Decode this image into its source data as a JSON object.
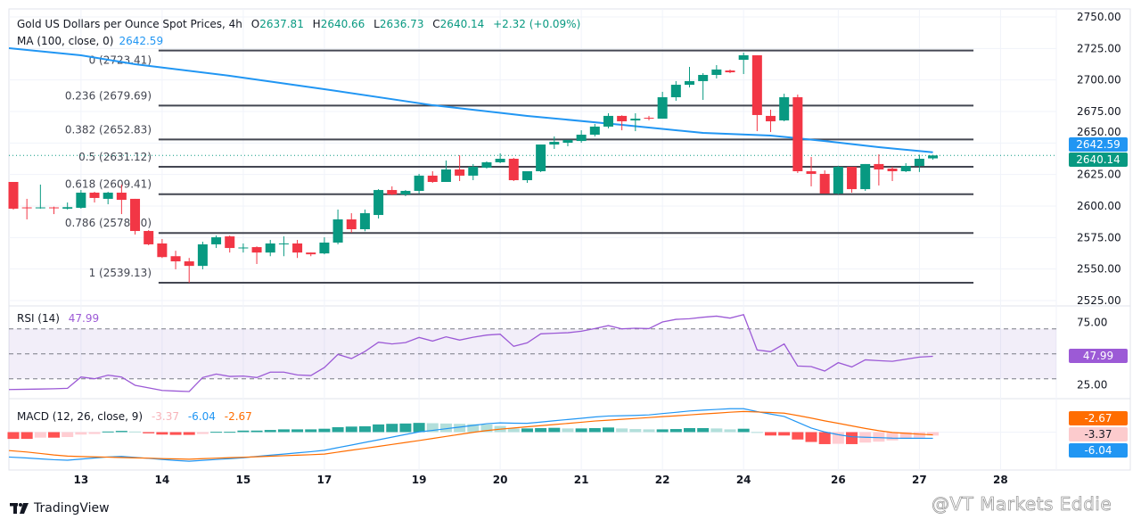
{
  "header": {
    "symbol_title": "Gold US Dollars per Ounce Spot Prices, 4h",
    "open_label": "O",
    "open": "2637.81",
    "high_label": "H",
    "high": "2640.66",
    "low_label": "L",
    "low": "2636.73",
    "close_label": "C",
    "close": "2640.14",
    "change": "+2.32 (+0.09%)",
    "ma_label": "MA (100, close, 0)",
    "ma_value": "2642.59"
  },
  "rsi_legend": {
    "label": "RSI (14)",
    "value": "47.99"
  },
  "macd_legend": {
    "label": "MACD (12, 26, close, 9)",
    "hist": "-3.37",
    "macd": "-6.04",
    "signal": "-2.67"
  },
  "badges": {
    "ma_price": "2642.59",
    "last_price": "2640.14",
    "rsi": "47.99",
    "macd_signal": "-2.67",
    "macd_hist": "-3.37",
    "macd_line": "-6.04"
  },
  "branding": {
    "logo_text": "TradingView",
    "watermark": "@VT Markets Eddie"
  },
  "colors": {
    "up": "#089981",
    "down": "#f23645",
    "ma": "#2196f3",
    "rsi": "#9c5ad6",
    "macd": "#2196f3",
    "signal": "#ff6d00",
    "fib": "#434651"
  },
  "chart_data": [
    {
      "type": "candlestick",
      "title": "Gold US Dollars per Ounce Spot Prices, 4h",
      "ylim": [
        2525,
        2750
      ],
      "yticks": [
        "2750.00",
        "2725.00",
        "2700.00",
        "2675.00",
        "2650.00",
        "2625.00",
        "2600.00",
        "2575.00",
        "2550.00",
        "2525.00"
      ],
      "ytick_values": [
        2750,
        2725,
        2700,
        2675,
        2650,
        2625,
        2600,
        2575,
        2550,
        2525
      ],
      "x_labels": [
        {
          "label": "13",
          "bar": 5
        },
        {
          "label": "14",
          "bar": 11
        },
        {
          "label": "15",
          "bar": 17
        },
        {
          "label": "17",
          "bar": 23
        },
        {
          "label": "19",
          "bar": 30
        },
        {
          "label": "20",
          "bar": 36
        },
        {
          "label": "21",
          "bar": 42
        },
        {
          "label": "22",
          "bar": 48
        },
        {
          "label": "24",
          "bar": 54
        },
        {
          "label": "26",
          "bar": 61
        },
        {
          "label": "27",
          "bar": 67
        },
        {
          "label": "28",
          "bar": 73
        }
      ],
      "ohlc": [
        [
          2619.1,
          2619.1,
          2597.2,
          2597.9
        ],
        [
          2598.9,
          2605.7,
          2589.4,
          2598.4
        ],
        [
          2598.4,
          2617.0,
          2597.9,
          2598.9
        ],
        [
          2598.9,
          2599.5,
          2593.6,
          2598.4
        ],
        [
          2597.9,
          2602.8,
          2597.2,
          2599.1
        ],
        [
          2598.6,
          2612.7,
          2597.9,
          2610.6
        ],
        [
          2610.6,
          2611.3,
          2602.8,
          2606.4
        ],
        [
          2605.7,
          2611.3,
          2601.4,
          2610.6
        ],
        [
          2610.6,
          2617.0,
          2593.6,
          2604.9
        ],
        [
          2605.7,
          2605.7,
          2577.4,
          2580.2
        ],
        [
          2580.2,
          2580.9,
          2568.9,
          2569.6
        ],
        [
          2570.3,
          2573.8,
          2558.8,
          2559.5
        ],
        [
          2560.2,
          2564.5,
          2549.8,
          2556.1
        ],
        [
          2556.1,
          2558.8,
          2539.13,
          2552.5
        ],
        [
          2552.5,
          2571.7,
          2549.8,
          2569.6
        ],
        [
          2569.6,
          2576.6,
          2566.7,
          2575.2
        ],
        [
          2575.9,
          2576.6,
          2563.1,
          2566.7
        ],
        [
          2566.7,
          2570.3,
          2563.1,
          2567.1
        ],
        [
          2567.4,
          2568.0,
          2554.0,
          2563.1
        ],
        [
          2563.1,
          2573.1,
          2560.2,
          2570.3
        ],
        [
          2570.0,
          2575.9,
          2560.2,
          2570.3
        ],
        [
          2570.3,
          2573.1,
          2558.8,
          2563.1
        ],
        [
          2563.1,
          2563.1,
          2560.2,
          2561.7
        ],
        [
          2562.4,
          2575.2,
          2561.7,
          2571.0
        ],
        [
          2571.0,
          2597.2,
          2569.6,
          2589.4
        ],
        [
          2589.4,
          2594.3,
          2578.8,
          2581.6
        ],
        [
          2581.6,
          2597.2,
          2580.0,
          2594.3
        ],
        [
          2592.9,
          2613.4,
          2590.1,
          2612.7
        ],
        [
          2612.7,
          2615.6,
          2608.5,
          2609.2
        ],
        [
          2609.2,
          2612.7,
          2607.8,
          2612.0
        ],
        [
          2612.0,
          2625.5,
          2609.9,
          2624.1
        ],
        [
          2624.1,
          2627.6,
          2618.4,
          2619.1
        ],
        [
          2619.1,
          2636.1,
          2619.1,
          2629.0
        ],
        [
          2629.0,
          2640.3,
          2619.8,
          2624.1
        ],
        [
          2624.1,
          2633.3,
          2620.5,
          2631.1
        ],
        [
          2630.4,
          2635.4,
          2629.7,
          2634.7
        ],
        [
          2634.7,
          2641.8,
          2634.0,
          2637.5
        ],
        [
          2637.5,
          2638.2,
          2619.8,
          2620.5
        ],
        [
          2620.5,
          2627.6,
          2618.4,
          2627.6
        ],
        [
          2627.6,
          2648.8,
          2626.9,
          2648.8
        ],
        [
          2648.8,
          2655.2,
          2645.3,
          2650.9
        ],
        [
          2650.2,
          2652.4,
          2647.4,
          2652.4
        ],
        [
          2651.6,
          2660.1,
          2650.2,
          2656.6
        ],
        [
          2656.6,
          2665.1,
          2655.2,
          2663.0
        ],
        [
          2663.0,
          2673.6,
          2661.6,
          2671.5
        ],
        [
          2671.5,
          2672.0,
          2660.1,
          2667.2
        ],
        [
          2667.9,
          2673.6,
          2659.4,
          2669.3
        ],
        [
          2670.0,
          2671.5,
          2668.0,
          2669.7
        ],
        [
          2669.3,
          2690.6,
          2669.3,
          2686.3
        ],
        [
          2686.3,
          2699.1,
          2683.5,
          2696.2
        ],
        [
          2696.2,
          2710.4,
          2694.1,
          2699.1
        ],
        [
          2699.1,
          2705.4,
          2684.2,
          2704.0
        ],
        [
          2704.0,
          2711.8,
          2701.2,
          2708.3
        ],
        [
          2707.5,
          2708.3,
          2705.4,
          2706.1
        ],
        [
          2716.0,
          2721.7,
          2704.7,
          2719.6
        ],
        [
          2719.6,
          2719.6,
          2659.4,
          2672.2
        ],
        [
          2671.5,
          2676.4,
          2658.7,
          2667.2
        ],
        [
          2667.9,
          2689.1,
          2667.2,
          2686.3
        ],
        [
          2686.3,
          2688.4,
          2626.2,
          2627.6
        ],
        [
          2627.6,
          2638.9,
          2615.6,
          2625.5
        ],
        [
          2625.5,
          2628.3,
          2610.6,
          2609.9
        ],
        [
          2609.9,
          2632.0,
          2609.2,
          2631.1
        ],
        [
          2631.1,
          2631.1,
          2610.6,
          2613.4
        ],
        [
          2613.4,
          2633.3,
          2612.0,
          2633.3
        ],
        [
          2633.3,
          2641.0,
          2616.3,
          2629.0
        ],
        [
          2629.7,
          2631.1,
          2619.8,
          2627.6
        ],
        [
          2627.6,
          2634.0,
          2626.9,
          2631.8
        ],
        [
          2631.8,
          2640.7,
          2627.0,
          2637.5
        ],
        [
          2637.81,
          2640.66,
          2636.73,
          2640.14
        ]
      ],
      "ma100_points": [
        {
          "bar": 0,
          "value": 2725.2
        },
        {
          "bar": 5,
          "value": 2719.6
        },
        {
          "bar": 9,
          "value": 2712.5
        },
        {
          "bar": 16,
          "value": 2703.3
        },
        {
          "bar": 23,
          "value": 2692.7
        },
        {
          "bar": 31,
          "value": 2680.0
        },
        {
          "bar": 38,
          "value": 2671.5
        },
        {
          "bar": 45,
          "value": 2664.4
        },
        {
          "bar": 51,
          "value": 2658.0
        },
        {
          "bar": 56,
          "value": 2655.9
        },
        {
          "bar": 60,
          "value": 2651.6
        },
        {
          "bar": 64,
          "value": 2646.7
        },
        {
          "bar": 68,
          "value": 2642.59
        }
      ],
      "last_price": 2640.14,
      "fib_levels": [
        {
          "label": "0 (2723.41)",
          "value": 2723.41
        },
        {
          "label": "0.236 (2679.69)",
          "value": 2679.69
        },
        {
          "label": "0.382 (2652.83)",
          "value": 2652.83
        },
        {
          "label": "0.5 (2631.12)",
          "value": 2631.12
        },
        {
          "label": "0.618 (2609.41)",
          "value": 2609.41
        },
        {
          "label": "0.786 (2578.60)",
          "value": 2578.6
        },
        {
          "label": "1 (2539.13)",
          "value": 2539.13
        }
      ],
      "fib_start_bar": 11,
      "fib_end_bar": 71
    },
    {
      "type": "line",
      "title": "RSI (14)",
      "ylim": [
        10,
        90
      ],
      "yticks": [
        "75.00",
        "25.00"
      ],
      "ytick_values": [
        75,
        25
      ],
      "band": [
        30,
        70
      ],
      "midline": 50,
      "values": [
        21.4,
        21.6,
        21.8,
        22.0,
        22.4,
        31.4,
        30.0,
        32.9,
        31.4,
        24.8,
        22.7,
        20.7,
        20.2,
        19.8,
        31.0,
        33.8,
        31.9,
        32.2,
        31.0,
        35.3,
        35.3,
        33.1,
        32.6,
        39.0,
        49.5,
        46.2,
        51.9,
        59.3,
        57.9,
        59.0,
        63.1,
        60.2,
        63.6,
        61.0,
        63.3,
        65.0,
        65.7,
        56.0,
        58.8,
        66.0,
        66.5,
        66.9,
        68.1,
        70.2,
        72.6,
        70.0,
        70.5,
        70.2,
        75.5,
        77.6,
        78.1,
        79.3,
        80.2,
        78.6,
        81.4,
        53.1,
        51.7,
        57.9,
        40.2,
        39.8,
        36.2,
        42.9,
        39.5,
        45.2,
        44.5,
        44.0,
        45.7,
        47.4,
        47.99
      ]
    },
    {
      "type": "bar+line",
      "title": "MACD (12, 26, close, 9)",
      "histogram": [
        -6.6,
        -6.6,
        -5.4,
        -5.4,
        -4.8,
        -2.4,
        -1.8,
        0.6,
        1.2,
        0.6,
        -1.2,
        -2.4,
        -2.7,
        -2.7,
        -1.8,
        0.3,
        0.3,
        1.5,
        1.5,
        2.1,
        2.7,
        2.7,
        2.7,
        3.3,
        4.8,
        5.4,
        5.7,
        7.5,
        8.1,
        8.4,
        9.0,
        8.7,
        8.4,
        8.1,
        7.8,
        7.5,
        6.0,
        3.6,
        3.6,
        3.9,
        4.2,
        3.6,
        3.6,
        3.9,
        4.5,
        3.6,
        3.0,
        2.7,
        2.7,
        3.0,
        3.9,
        3.9,
        3.6,
        2.7,
        3.3,
        0.1,
        -3.3,
        -3.3,
        -7.2,
        -9.6,
        -11.7,
        -11.4,
        -11.7,
        -10.2,
        -9.3,
        -8.1,
        -6.6,
        -5.4,
        -3.37
      ],
      "macd": [
        -24.3,
        -25.2,
        -26.1,
        -26.9,
        -27.4,
        -26.3,
        -25.2,
        -24.2,
        -23.7,
        -24.6,
        -25.6,
        -26.6,
        -27.6,
        -28.4,
        -27.5,
        -26.7,
        -25.9,
        -25.0,
        -23.7,
        -22.5,
        -21.4,
        -20.2,
        -19.1,
        -17.7,
        -15.1,
        -12.6,
        -10.0,
        -7.5,
        -4.9,
        -2.3,
        0.2,
        1.7,
        3.3,
        4.9,
        6.5,
        8.2,
        9.0,
        8.7,
        8.6,
        9.8,
        11.1,
        12.3,
        13.5,
        14.8,
        15.7,
        16.0,
        16.3,
        16.8,
        18.1,
        19.3,
        20.6,
        21.4,
        22.1,
        22.8,
        22.8,
        20.0,
        17.6,
        15.3,
        9.6,
        4.0,
        0.2,
        -2.5,
        -4.5,
        -5.0,
        -5.4,
        -5.9,
        -6.0,
        -6.0,
        -6.04
      ],
      "signal": [
        -18.0,
        -19.4,
        -20.8,
        -22.3,
        -23.4,
        -23.8,
        -24.1,
        -24.4,
        -24.8,
        -25.1,
        -25.4,
        -25.8,
        -26.1,
        -26.4,
        -25.9,
        -25.4,
        -24.9,
        -24.5,
        -24.0,
        -23.5,
        -23.0,
        -22.5,
        -22.0,
        -21.4,
        -19.5,
        -17.6,
        -15.8,
        -13.9,
        -12.0,
        -10.1,
        -8.2,
        -6.2,
        -4.2,
        -2.2,
        -0.2,
        1.5,
        2.9,
        4.0,
        5.2,
        6.3,
        7.4,
        8.5,
        9.6,
        10.8,
        11.6,
        12.5,
        13.3,
        14.2,
        15.1,
        15.9,
        16.8,
        17.7,
        18.5,
        19.4,
        20.1,
        19.6,
        19.1,
        18.5,
        16.2,
        13.7,
        11.0,
        8.6,
        6.1,
        3.6,
        1.4,
        -0.3,
        -1.2,
        -2.0,
        -2.67
      ]
    }
  ]
}
